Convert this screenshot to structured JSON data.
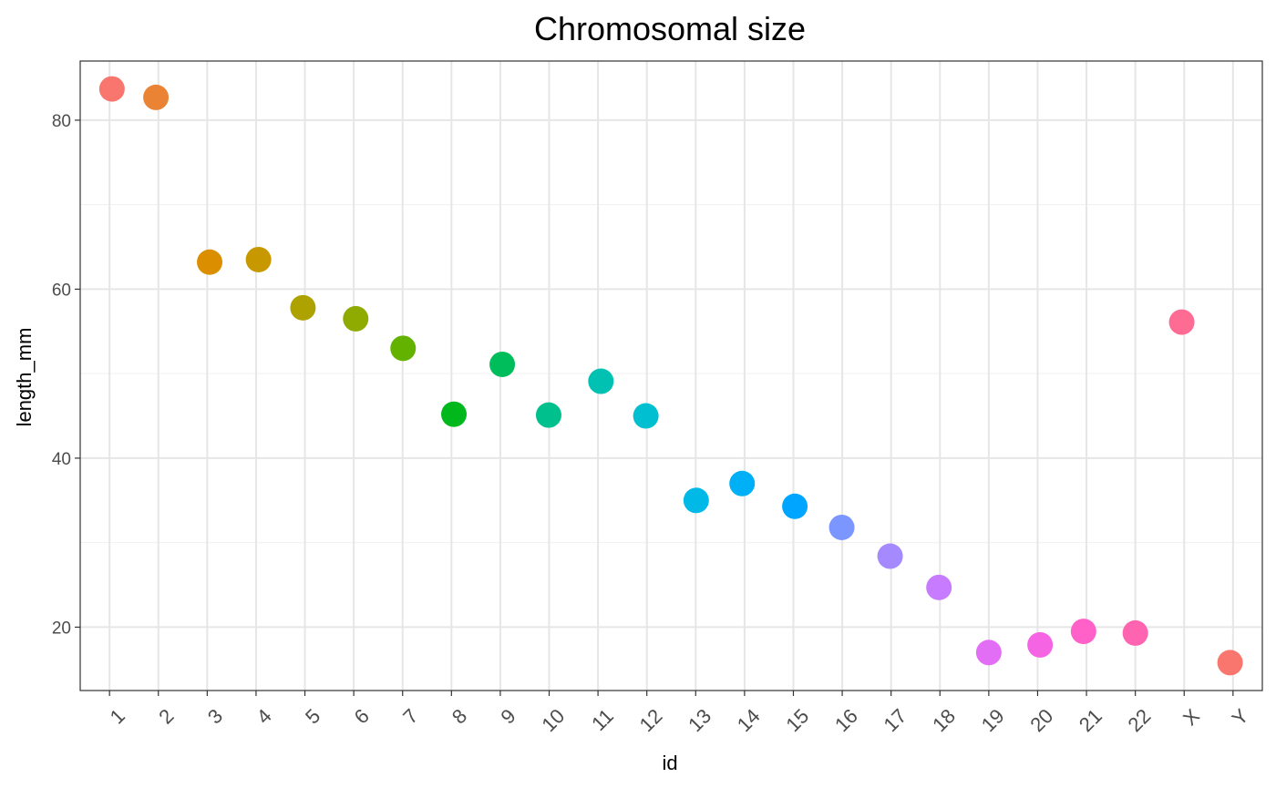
{
  "chart_data": {
    "type": "scatter",
    "title": "Chromosomal size",
    "xlabel": "id",
    "ylabel": "length_mm",
    "categories": [
      "1",
      "2",
      "3",
      "4",
      "5",
      "6",
      "7",
      "8",
      "9",
      "10",
      "11",
      "12",
      "13",
      "14",
      "15",
      "16",
      "17",
      "18",
      "19",
      "20",
      "21",
      "22",
      "X",
      "Y"
    ],
    "values": [
      83.7,
      82.7,
      63.2,
      63.5,
      57.8,
      56.5,
      53.0,
      45.2,
      51.1,
      45.1,
      49.1,
      45.0,
      35.0,
      37.0,
      34.3,
      31.8,
      28.4,
      24.7,
      17.0,
      17.9,
      19.5,
      19.3,
      56.1,
      15.8
    ],
    "jitter": [
      0.05,
      -0.05,
      0.05,
      0.05,
      -0.04,
      0.04,
      0.01,
      0.05,
      0.04,
      -0.01,
      0.06,
      -0.02,
      0.01,
      -0.05,
      0.03,
      -0.01,
      -0.02,
      -0.02,
      0.0,
      0.05,
      -0.06,
      0.0,
      -0.05,
      -0.06
    ],
    "colors": [
      "#F8766D",
      "#EB8335",
      "#DB8E00",
      "#C79800",
      "#AEA200",
      "#8FAA00",
      "#64B200",
      "#00B81B",
      "#00BD5C",
      "#00C08D",
      "#00C1B2",
      "#00BFD0",
      "#00B9E6",
      "#00B0F6",
      "#00A5FF",
      "#7C96FF",
      "#A58AFF",
      "#C77CFF",
      "#E36EF6",
      "#F564E3",
      "#FF61C9",
      "#FF64B0",
      "#FF6C93",
      "#F8766D"
    ],
    "ylim": [
      12.5,
      87
    ],
    "yticks": [
      20,
      40,
      60,
      80
    ],
    "ytick_labels": [
      "20",
      "40",
      "60",
      "80"
    ],
    "grid": true,
    "legend": "none"
  }
}
